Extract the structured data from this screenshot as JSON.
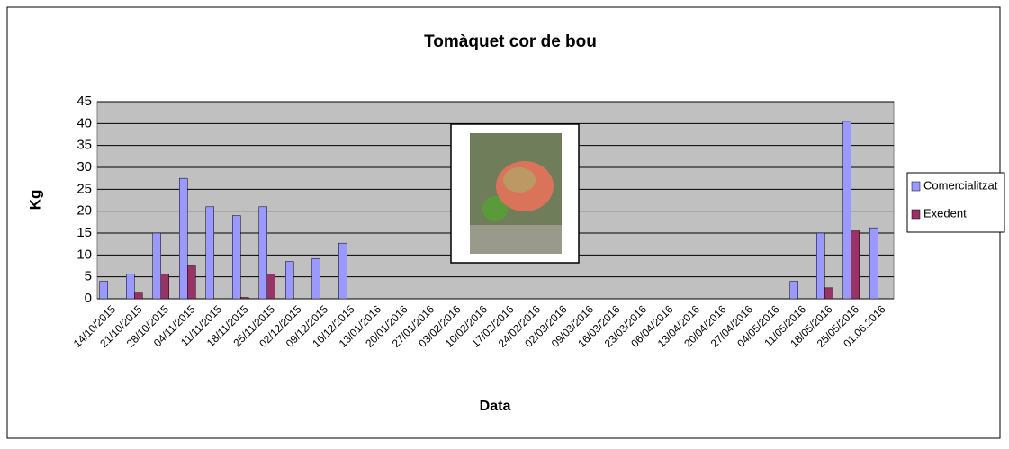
{
  "chart_data": {
    "type": "bar",
    "title": "Tomàquet cor de bou",
    "x_label": "Data",
    "y_label": "Kg",
    "categories": [
      "14/10/2015",
      "21/10/2015",
      "28/10/2015",
      "04/11/2015",
      "11/11/2015",
      "18/11/2015",
      "25/11/2015",
      "02/12/2015",
      "09/12/2015",
      "16/12/2015",
      "13/01/2016",
      "20/01/2016",
      "27/01/2016",
      "03/02/2016",
      "10/02/2016",
      "17/02/2016",
      "24/02/2016",
      "02/03/2016",
      "09/03/2016",
      "16/03/2016",
      "23/03/2016",
      "06/04/2016",
      "13/04/2016",
      "20/04/2016",
      "27/04/2016",
      "04/05/2016",
      "11/05/2016",
      "18/05/2016",
      "25/05/2016",
      "01.06.2016"
    ],
    "series": [
      {
        "name": "Comercialitzat",
        "color": "#9999ff",
        "values": [
          4,
          5.7,
          15,
          27.5,
          21,
          19,
          21,
          8.5,
          9.2,
          12.7,
          null,
          null,
          null,
          null,
          null,
          null,
          null,
          null,
          null,
          null,
          null,
          null,
          null,
          null,
          null,
          null,
          4,
          15,
          40.5,
          16.2
        ]
      },
      {
        "name": "Exedent",
        "color": "#993366",
        "values": [
          null,
          1.3,
          5.7,
          7.5,
          null,
          0.3,
          5.7,
          null,
          null,
          null,
          null,
          null,
          null,
          null,
          null,
          null,
          null,
          null,
          null,
          null,
          null,
          null,
          null,
          null,
          null,
          null,
          null,
          2.5,
          15.5,
          null
        ]
      }
    ],
    "ylim": [
      0,
      45
    ],
    "yticks": [
      0,
      5,
      10,
      15,
      20,
      25,
      30,
      35,
      40,
      45
    ],
    "grid": true,
    "legend": "right"
  }
}
